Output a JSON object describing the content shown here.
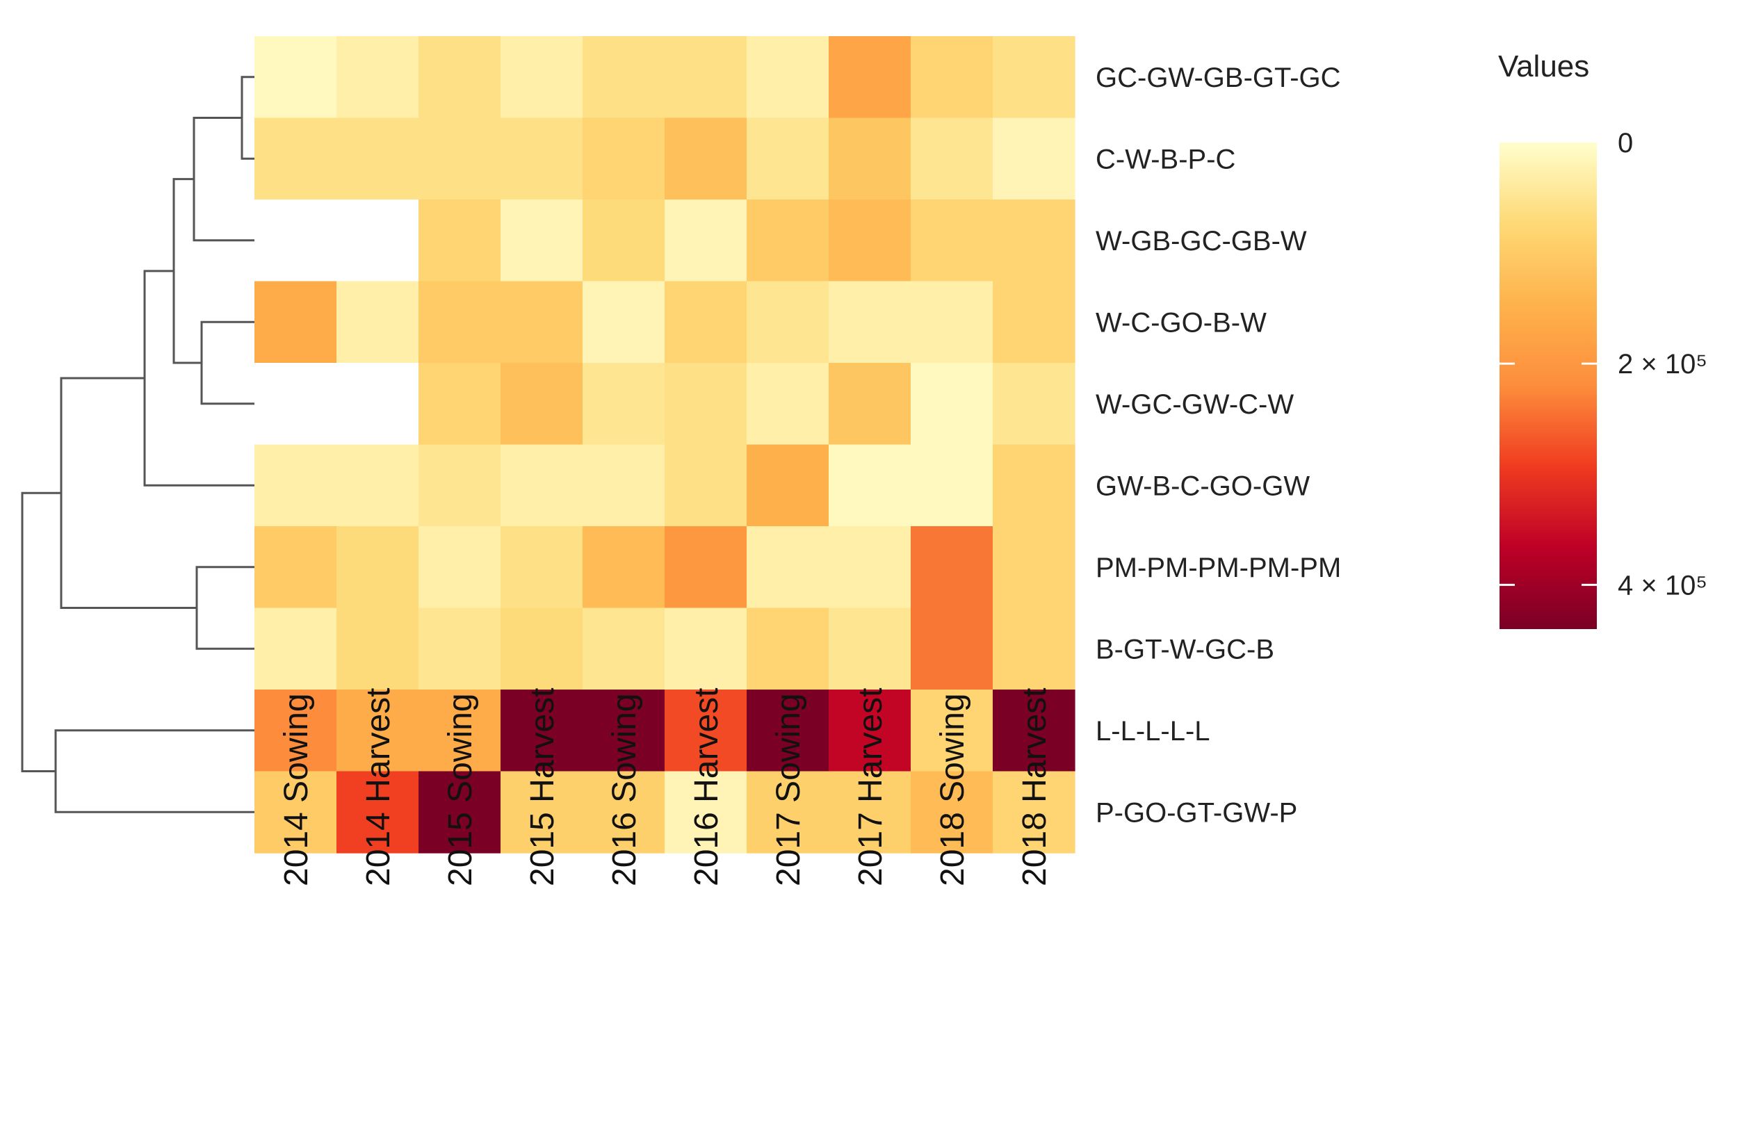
{
  "chart_data": {
    "type": "heatmap",
    "title": "",
    "rows": [
      "GC-GW-GB-GT-GC",
      "C-W-B-P-C",
      "W-GB-GC-GB-W",
      "W-C-GO-B-W",
      "W-GC-GW-C-W",
      "GW-B-C-GO-GW",
      "PM-PM-PM-PM-PM",
      "B-GT-W-GC-B",
      "L-L-L-L-L",
      "P-GO-GT-GW-P"
    ],
    "columns": [
      "2014 Sowing",
      "2014 Harvest",
      "2015 Sowing",
      "2015 Harvest",
      "2016 Sowing",
      "2016 Harvest",
      "2017 Sowing",
      "2017 Harvest",
      "2018 Sowing",
      "2018 Harvest"
    ],
    "values": [
      [
        10000,
        30000,
        60000,
        30000,
        60000,
        60000,
        30000,
        170000,
        80000,
        60000
      ],
      [
        60000,
        60000,
        60000,
        60000,
        80000,
        120000,
        50000,
        110000,
        50000,
        20000
      ],
      [
        null,
        null,
        80000,
        20000,
        70000,
        20000,
        100000,
        130000,
        80000,
        80000
      ],
      [
        160000,
        30000,
        100000,
        100000,
        20000,
        80000,
        50000,
        30000,
        30000,
        80000
      ],
      [
        null,
        null,
        80000,
        120000,
        50000,
        60000,
        30000,
        110000,
        10000,
        50000
      ],
      [
        30000,
        30000,
        50000,
        30000,
        30000,
        60000,
        150000,
        10000,
        10000,
        80000
      ],
      [
        100000,
        70000,
        30000,
        60000,
        130000,
        200000,
        30000,
        30000,
        240000,
        80000
      ],
      [
        30000,
        70000,
        50000,
        70000,
        50000,
        30000,
        80000,
        50000,
        240000,
        80000
      ],
      [
        220000,
        160000,
        160000,
        440000,
        440000,
        280000,
        440000,
        360000,
        80000,
        440000
      ],
      [
        100000,
        290000,
        440000,
        90000,
        90000,
        20000,
        90000,
        90000,
        130000,
        80000
      ]
    ],
    "legend": {
      "title": "Values",
      "ticks": [
        "0",
        "2 × 10⁵",
        "4 × 10⁵"
      ],
      "tick_values": [
        0,
        200000,
        400000
      ],
      "range": [
        0,
        440000
      ],
      "colors": [
        "#fffecc",
        "#fed976",
        "#feb24c",
        "#fd8d3c",
        "#f03b20",
        "#bd0026",
        "#7a0025"
      ],
      "position": "right"
    },
    "dendrogram": {
      "side": "left",
      "merges": [
        {
          "children": [
            "r0",
            "r1"
          ]
        },
        {
          "children": [
            "m0",
            "r2"
          ]
        },
        {
          "children": [
            "r3",
            "r4"
          ]
        },
        {
          "children": [
            "m1",
            "m2"
          ]
        },
        {
          "children": [
            "m3",
            "r5"
          ]
        },
        {
          "children": [
            "r6",
            "r7"
          ]
        },
        {
          "children": [
            "m4",
            "m5"
          ]
        },
        {
          "children": [
            "r8",
            "r9"
          ]
        },
        {
          "children": [
            "m6",
            "m7"
          ]
        }
      ]
    },
    "missing_color": "#ffffff"
  }
}
